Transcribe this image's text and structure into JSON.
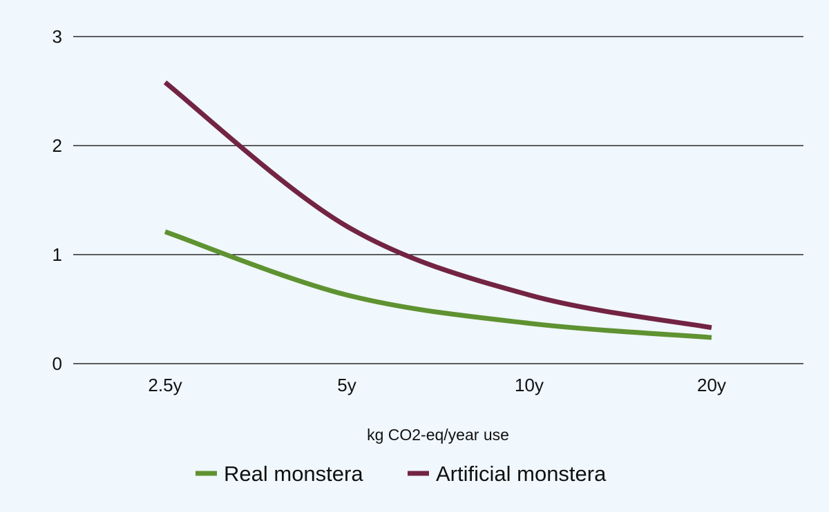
{
  "chart_data": {
    "type": "line",
    "title": "",
    "xlabel": "kg CO2-eq/year use",
    "ylabel": "",
    "categories": [
      "2.5y",
      "5y",
      "10y",
      "20y"
    ],
    "ylim": [
      0,
      3
    ],
    "yticks": [
      "0",
      "1",
      "2",
      "3"
    ],
    "grid": true,
    "legend": "bottom-center",
    "smooth": true,
    "series": [
      {
        "name": "Real monstera",
        "color": "#5f9231",
        "values": [
          1.21,
          0.63,
          0.37,
          0.24
        ]
      },
      {
        "name": "Artificial monstera",
        "color": "#722442",
        "values": [
          2.58,
          1.26,
          0.63,
          0.33
        ]
      }
    ]
  }
}
